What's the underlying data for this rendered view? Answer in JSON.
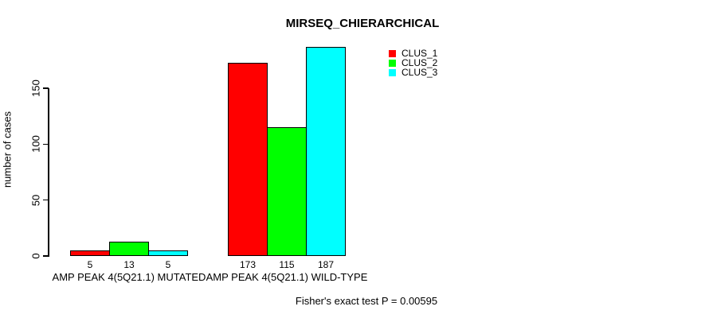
{
  "chart_data": {
    "type": "bar",
    "title": "MIRSEQ_CHIERARCHICAL",
    "xlabel": "",
    "ylabel": "number of cases",
    "categories": [
      "AMP PEAK 4(5Q21.1) MUTATED",
      "AMP PEAK 4(5Q21.1) WILD-TYPE"
    ],
    "series": [
      {
        "name": "CLUS_1",
        "color": "#ff0000",
        "values": [
          5,
          173
        ]
      },
      {
        "name": "CLUS_2",
        "color": "#00ff00",
        "values": [
          13,
          115
        ]
      },
      {
        "name": "CLUS_3",
        "color": "#00ffff",
        "values": [
          5,
          187
        ]
      }
    ],
    "yticks": [
      0,
      50,
      100,
      150
    ],
    "ylim": [
      0,
      190
    ],
    "grid": false,
    "bar_value_labels": true,
    "legend_position": "top-right"
  },
  "caption": "Fisher's exact test P = 0.00595"
}
